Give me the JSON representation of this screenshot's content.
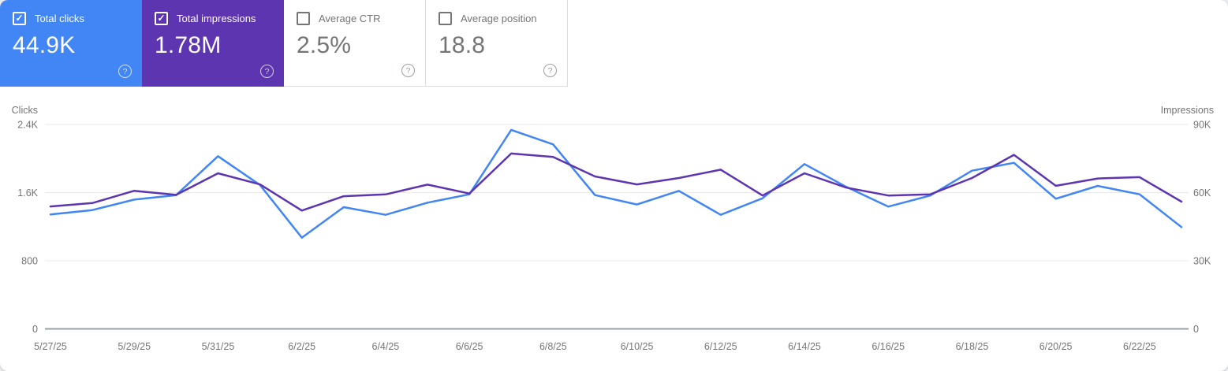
{
  "cards": [
    {
      "label": "Total clicks",
      "value": "44.9K",
      "selected": true,
      "color": "#4285f4"
    },
    {
      "label": "Total impressions",
      "value": "1.78M",
      "selected": true,
      "color": "#5e35b1"
    },
    {
      "label": "Average CTR",
      "value": "2.5%",
      "selected": false,
      "color": "#ffffff"
    },
    {
      "label": "Average position",
      "value": "18.8",
      "selected": false,
      "color": "#ffffff"
    }
  ],
  "icons": {
    "help_glyph": "?",
    "checkbox_checked_glyph": "✓"
  },
  "colors": {
    "grid": "#e9e9e9",
    "axis_line": "#9aa0a6",
    "tick_text": "#757575",
    "card_border": "#dadce0"
  },
  "chart_data": {
    "type": "line",
    "x": [
      "5/27/25",
      "5/28/25",
      "5/29/25",
      "5/30/25",
      "5/31/25",
      "6/1/25",
      "6/2/25",
      "6/3/25",
      "6/4/25",
      "6/5/25",
      "6/6/25",
      "6/7/25",
      "6/8/25",
      "6/9/25",
      "6/10/25",
      "6/11/25",
      "6/12/25",
      "6/13/25",
      "6/14/25",
      "6/15/25",
      "6/16/25",
      "6/17/25",
      "6/18/25",
      "6/19/25",
      "6/20/25",
      "6/21/25",
      "6/22/25",
      "6/23/25"
    ],
    "x_tick_labels": [
      "5/27/25",
      "5/29/25",
      "5/31/25",
      "6/2/25",
      "6/4/25",
      "6/6/25",
      "6/8/25",
      "6/10/25",
      "6/12/25",
      "6/14/25",
      "6/16/25",
      "6/18/25",
      "6/20/25",
      "6/22/25"
    ],
    "series": [
      {
        "name": "Clicks",
        "axis": "left",
        "color": "#4285f4",
        "values": [
          1343,
          1395,
          1518,
          1570,
          2027,
          1690,
          1071,
          1429,
          1339,
          1482,
          1580,
          2336,
          2166,
          1570,
          1460,
          1620,
          1339,
          1533,
          1935,
          1667,
          1435,
          1565,
          1857,
          1950,
          1528,
          1679,
          1580,
          1195
        ]
      },
      {
        "name": "Impressions",
        "axis": "right",
        "color": "#5e35b1",
        "values": [
          53900,
          55400,
          60800,
          59000,
          68500,
          63600,
          52100,
          58400,
          59200,
          63500,
          59600,
          77200,
          75700,
          67100,
          63600,
          66400,
          70100,
          58700,
          68500,
          62200,
          58700,
          59200,
          66400,
          76600,
          63000,
          66200,
          66800,
          56000
        ]
      }
    ],
    "left_axis": {
      "title": "Clicks",
      "ticks": [
        "2.4K",
        "1.6K",
        "800",
        "0"
      ],
      "tick_values": [
        2400,
        1600,
        800,
        0
      ],
      "max": 2400
    },
    "right_axis": {
      "title": "Impressions",
      "ticks": [
        "90K",
        "60K",
        "30K",
        "0"
      ],
      "tick_values": [
        90000,
        60000,
        30000,
        0
      ],
      "max": 90000
    },
    "grid": true,
    "legend": "none"
  }
}
